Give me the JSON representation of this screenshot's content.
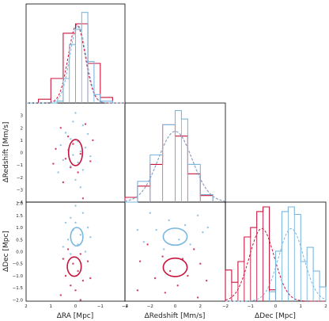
{
  "colors": {
    "red": "#c8143c",
    "blue": "#7ab7de",
    "axis": "#000000"
  },
  "chart_data": [
    {
      "id": "hist_ra",
      "type": "histogram",
      "xlim": [
        2,
        -2
      ],
      "ylim": [
        0,
        1.05
      ],
      "series": [
        {
          "color": "#c8143c",
          "edges": [
            -1.5,
            -1.0,
            -0.5,
            0.0,
            0.5,
            1.0,
            1.5
          ],
          "values": [
            0.06,
            0.42,
            0.84,
            0.74,
            0.26,
            0.04
          ],
          "fit": {
            "mu": -0.05,
            "sigma": 0.34,
            "peak": 0.83
          }
        },
        {
          "color": "#7ab7de",
          "edges": [
            -1.5,
            -1.0,
            -0.75,
            -0.5,
            -0.25,
            0.0,
            0.25,
            0.5,
            0.75,
            1.0
          ],
          "values": [
            0.02,
            0.09,
            0.44,
            0.96,
            0.78,
            0.62,
            0.26,
            0.02,
            0.0
          ],
          "fit": {
            "mu": -0.1,
            "sigma": 0.33,
            "peak": 0.82
          }
        }
      ]
    },
    {
      "id": "hist_redshift",
      "type": "histogram",
      "xlim": [
        -4,
        4
      ],
      "ylim": [
        0,
        1.05
      ],
      "series": [
        {
          "color": "#c8143c",
          "edges": [
            -4,
            -3,
            -2,
            -1,
            0,
            1,
            2,
            3
          ],
          "values": [
            0.05,
            0.17,
            0.4,
            0.82,
            0.7,
            0.3,
            0.07
          ],
          "fit": {
            "mu": 0.0,
            "sigma": 1.35,
            "peak": 0.75
          }
        },
        {
          "color": "#7ab7de",
          "edges": [
            -4,
            -3,
            -2,
            -1,
            0,
            0.5,
            1,
            2,
            3
          ],
          "values": [
            0.0,
            0.22,
            0.5,
            0.82,
            0.97,
            0.88,
            0.4,
            0.08
          ],
          "fit": {
            "mu": 0.0,
            "sigma": 1.35,
            "peak": 0.75
          }
        }
      ]
    },
    {
      "id": "hist_dec",
      "type": "histogram",
      "xlim": [
        -2,
        2
      ],
      "ylim": [
        0,
        1.05
      ],
      "series": [
        {
          "color": "#c8143c",
          "edges": [
            -2.0,
            -1.75,
            -1.5,
            -1.25,
            -1.0,
            -0.75,
            -0.5,
            -0.25,
            0.0
          ],
          "values": [
            0.33,
            0.2,
            0.42,
            0.68,
            0.78,
            0.95,
            1.0,
            0.12
          ],
          "fit": {
            "mu": -0.55,
            "sigma": 0.5,
            "peak": 0.77
          }
        },
        {
          "color": "#7ab7de",
          "edges": [
            -0.25,
            0.0,
            0.25,
            0.5,
            0.75,
            1.0,
            1.25,
            1.5,
            1.75,
            2.0
          ],
          "values": [
            0.1,
            0.53,
            0.95,
            1.0,
            0.92,
            0.42,
            0.57,
            0.32,
            0.15
          ],
          "fit": {
            "mu": 0.62,
            "sigma": 0.5,
            "peak": 0.77
          }
        }
      ]
    },
    {
      "id": "scatter_ra_redshift",
      "type": "scatter",
      "xlabel": "",
      "ylabel": "ΔRedshift [Mm/s]",
      "xlim": [
        2,
        -2
      ],
      "ylim": [
        -4,
        4
      ],
      "yticks": [
        3,
        2,
        1,
        0,
        -1,
        -2,
        -3,
        -4
      ],
      "ellipses": [
        {
          "color": "#c8143c",
          "cx": 0.0,
          "cy": 0.0,
          "rx": 0.28,
          "ry": 1.05
        }
      ],
      "series": [
        {
          "color": "#7ab7de",
          "points": [
            [
              0.0,
              3.2
            ],
            [
              0.1,
              2.5
            ],
            [
              -0.3,
              2.2
            ],
            [
              0.4,
              1.6
            ],
            [
              -0.5,
              1.5
            ],
            [
              0.2,
              1.1
            ],
            [
              -0.1,
              0.9
            ],
            [
              0.6,
              0.6
            ],
            [
              -0.4,
              0.4
            ],
            [
              0.3,
              0.2
            ],
            [
              -0.2,
              0.1
            ],
            [
              0.1,
              -0.2
            ],
            [
              -0.6,
              -0.3
            ],
            [
              0.5,
              -0.6
            ],
            [
              -0.1,
              -0.8
            ],
            [
              0.2,
              -1.1
            ],
            [
              -0.3,
              -1.4
            ],
            [
              0.7,
              -1.6
            ],
            [
              0.0,
              -2.2
            ],
            [
              -0.2,
              -2.8
            ]
          ]
        },
        {
          "color": "#c8143c",
          "points": [
            [
              0.6,
              2.0
            ],
            [
              -0.4,
              2.3
            ],
            [
              0.3,
              1.3
            ],
            [
              -0.7,
              1.0
            ],
            [
              0.1,
              0.7
            ],
            [
              0.8,
              0.3
            ],
            [
              -0.2,
              -0.1
            ],
            [
              0.4,
              -0.5
            ],
            [
              -0.6,
              -0.7
            ],
            [
              0.2,
              -1.2
            ],
            [
              -0.1,
              -1.6
            ],
            [
              0.5,
              -2.4
            ],
            [
              -0.3,
              -3.7
            ],
            [
              0.9,
              -0.9
            ]
          ]
        }
      ]
    },
    {
      "id": "scatter_ra_dec",
      "type": "scatter",
      "xlabel": "ΔRA [Mpc]",
      "ylabel": "ΔDec [Mpc]",
      "xlim": [
        2,
        -2
      ],
      "ylim": [
        -2.05,
        2.05
      ],
      "xticks": [
        2,
        1,
        0,
        -1,
        -2
      ],
      "yticks": [
        2.0,
        1.5,
        1.0,
        0.5,
        0.0,
        -0.5,
        -1.0,
        -1.5,
        -2.0
      ],
      "ellipses": [
        {
          "color": "#7ab7de",
          "cx": -0.05,
          "cy": 0.62,
          "rx": 0.25,
          "ry": 0.38
        },
        {
          "color": "#c8143c",
          "cx": 0.05,
          "cy": -0.62,
          "rx": 0.28,
          "ry": 0.4
        }
      ],
      "series": [
        {
          "color": "#7ab7de",
          "points": [
            [
              0.0,
              1.9
            ],
            [
              -0.3,
              1.6
            ],
            [
              0.2,
              1.4
            ],
            [
              0.4,
              1.2
            ],
            [
              -0.5,
              1.0
            ],
            [
              0.1,
              0.9
            ],
            [
              -0.2,
              0.7
            ],
            [
              0.3,
              0.5
            ],
            [
              -0.1,
              0.3
            ],
            [
              0.5,
              0.2
            ],
            [
              -0.4,
              0.0
            ],
            [
              0.2,
              -0.1
            ],
            [
              0.0,
              1.2
            ],
            [
              -0.6,
              0.6
            ]
          ]
        },
        {
          "color": "#c8143c",
          "points": [
            [
              0.3,
              0.1
            ],
            [
              -0.2,
              -0.1
            ],
            [
              0.5,
              -0.3
            ],
            [
              -0.5,
              -0.4
            ],
            [
              0.1,
              -0.5
            ],
            [
              -0.1,
              -0.8
            ],
            [
              0.4,
              -1.0
            ],
            [
              -0.3,
              -1.2
            ],
            [
              0.2,
              -1.4
            ],
            [
              0.0,
              -1.6
            ],
            [
              -0.6,
              -1.1
            ],
            [
              0.6,
              -1.8
            ],
            [
              -0.2,
              -2.0
            ]
          ]
        }
      ]
    },
    {
      "id": "scatter_redshift_dec",
      "type": "scatter",
      "xlabel": "ΔRedshift [Mm/s]",
      "ylabel": "",
      "xlim": [
        -4,
        4
      ],
      "ylim": [
        -2.05,
        2.05
      ],
      "xticks": [
        -4,
        -2,
        0,
        2
      ],
      "ellipses": [
        {
          "color": "#7ab7de",
          "cx": 0.0,
          "cy": 0.62,
          "rx": 0.95,
          "ry": 0.35
        },
        {
          "color": "#c8143c",
          "cx": 0.0,
          "cy": -0.65,
          "rx": 0.95,
          "ry": 0.38
        }
      ],
      "series": [
        {
          "color": "#7ab7de",
          "points": [
            [
              -2.0,
              1.6
            ],
            [
              1.8,
              1.5
            ],
            [
              -0.5,
              1.3
            ],
            [
              0.8,
              1.1
            ],
            [
              -1.5,
              0.9
            ],
            [
              2.2,
              0.8
            ],
            [
              0.3,
              0.5
            ],
            [
              -2.5,
              0.4
            ],
            [
              1.2,
              0.3
            ],
            [
              -0.9,
              0.1
            ],
            [
              2.6,
              1.0
            ],
            [
              -3.0,
              0.9
            ]
          ]
        },
        {
          "color": "#c8143c",
          "points": [
            [
              -2.2,
              0.3
            ],
            [
              1.5,
              0.1
            ],
            [
              -1.0,
              -0.2
            ],
            [
              0.6,
              -0.3
            ],
            [
              -2.8,
              -0.4
            ],
            [
              2.0,
              -0.5
            ],
            [
              -0.4,
              -0.8
            ],
            [
              1.0,
              -1.0
            ],
            [
              -1.6,
              -1.1
            ],
            [
              2.5,
              -1.2
            ],
            [
              0.2,
              -1.4
            ],
            [
              -0.8,
              -1.7
            ],
            [
              1.8,
              -1.9
            ],
            [
              -3.0,
              -1.6
            ]
          ]
        }
      ]
    }
  ],
  "bottom_axis_dec": {
    "xlabel": "ΔDec [Mpc]",
    "xticks": [
      -2,
      -1,
      0,
      1,
      2
    ]
  }
}
